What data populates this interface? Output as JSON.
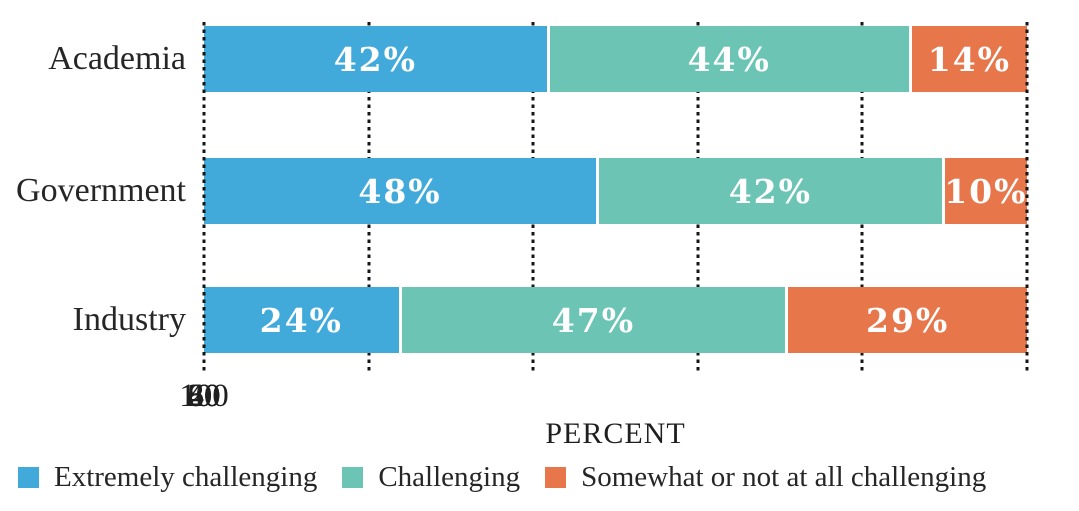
{
  "chart_data": {
    "type": "bar",
    "orientation": "horizontal-stacked",
    "categories": [
      "Academia",
      "Government",
      "Industry"
    ],
    "series": [
      {
        "name": "Extremely challenging",
        "values": [
          42,
          48,
          24
        ]
      },
      {
        "name": "Challenging",
        "values": [
          44,
          42,
          47
        ]
      },
      {
        "name": "Somewhat or not at all challenging",
        "values": [
          14,
          10,
          29
        ]
      }
    ],
    "xlabel": "PERCENT",
    "ylabel": "",
    "xlim": [
      0,
      100
    ],
    "xticks": [
      0,
      20,
      40,
      60,
      80,
      100
    ],
    "grid": "dotted-vertical",
    "legend_position": "bottom"
  },
  "colors": {
    "blue": "#41aadb",
    "teal": "#6cc5b4",
    "orange": "#e7764b"
  },
  "rows": [
    {
      "label": "Academia",
      "segments": [
        {
          "value": 42,
          "text": "42%",
          "color": "blue"
        },
        {
          "value": 44,
          "text": "44%",
          "color": "teal"
        },
        {
          "value": 14,
          "text": "14%",
          "color": "orange"
        }
      ]
    },
    {
      "label": "Government",
      "segments": [
        {
          "value": 48,
          "text": "48%",
          "color": "blue"
        },
        {
          "value": 42,
          "text": "42%",
          "color": "teal"
        },
        {
          "value": 10,
          "text": "10%",
          "color": "orange"
        }
      ]
    },
    {
      "label": "Industry",
      "segments": [
        {
          "value": 24,
          "text": "24%",
          "color": "blue"
        },
        {
          "value": 47,
          "text": "47%",
          "color": "teal"
        },
        {
          "value": 29,
          "text": "29%",
          "color": "orange"
        }
      ]
    }
  ],
  "axis": {
    "ticks": [
      "0",
      "20",
      "40",
      "60",
      "80",
      "100"
    ],
    "label": "PERCENT"
  },
  "legend": [
    {
      "label": "Extremely challenging",
      "color": "blue"
    },
    {
      "label": "Challenging",
      "color": "teal"
    },
    {
      "label": "Somewhat or not at all challenging",
      "color": "orange"
    }
  ]
}
